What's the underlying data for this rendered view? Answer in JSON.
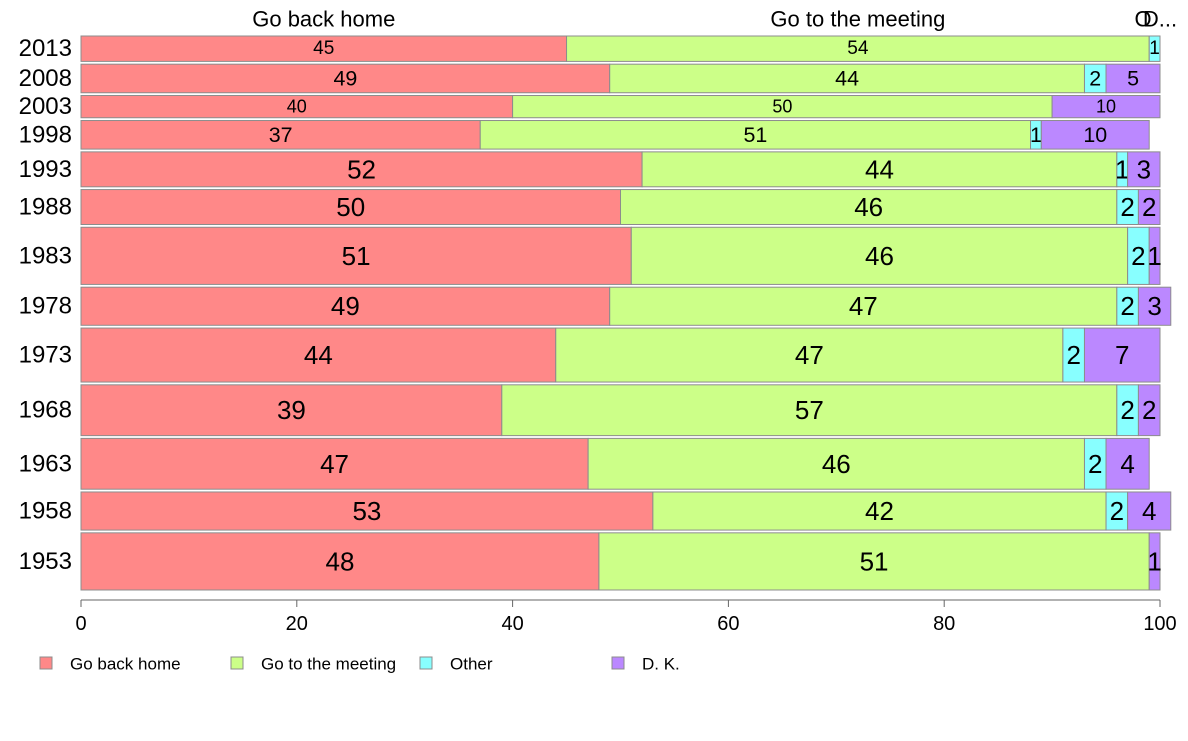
{
  "chart_data": {
    "type": "bar",
    "orientation": "horizontal",
    "stacked": true,
    "categories": [
      "2013",
      "2008",
      "2003",
      "1998",
      "1993",
      "1988",
      "1983",
      "1978",
      "1973",
      "1968",
      "1963",
      "1958",
      "1953"
    ],
    "bar_weights": [
      0.4,
      0.45,
      0.35,
      0.45,
      0.55,
      0.55,
      0.9,
      0.6,
      0.85,
      0.8,
      0.8,
      0.6,
      0.9
    ],
    "series": [
      {
        "name": "Go back home",
        "color": "#ff8888",
        "values": [
          45,
          49,
          40,
          37,
          52,
          50,
          51,
          49,
          44,
          39,
          47,
          53,
          48
        ]
      },
      {
        "name": "Go to the meeting",
        "color": "#ccff88",
        "values": [
          54,
          44,
          50,
          51,
          44,
          46,
          46,
          47,
          47,
          57,
          46,
          42,
          51
        ]
      },
      {
        "name": "Other",
        "color": "#88ffff",
        "values": [
          1,
          2,
          0,
          1,
          1,
          2,
          2,
          2,
          2,
          2,
          2,
          2,
          0
        ]
      },
      {
        "name": "D. K.",
        "color": "#bb88ff",
        "values": [
          0,
          5,
          10,
          10,
          3,
          2,
          1,
          3,
          7,
          2,
          4,
          4,
          1
        ]
      }
    ],
    "top_labels": [
      "Go back home",
      "Go to the meeting",
      "O",
      "D..."
    ],
    "xlim": [
      0,
      100
    ],
    "x_ticks": [
      "0",
      "20",
      "40",
      "60",
      "80",
      "100"
    ],
    "grid": false,
    "legend": {
      "placement": "bottom",
      "entries": [
        "Go back home",
        "Go to the meeting",
        "Other",
        "D. K."
      ]
    }
  }
}
